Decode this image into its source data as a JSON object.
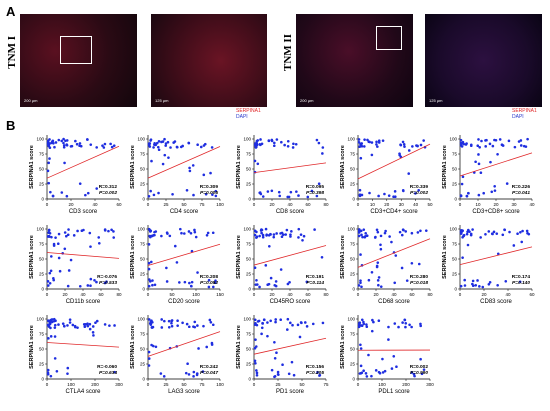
{
  "panel_a_label": "A",
  "panel_b_label": "B",
  "tnm1_label": "TNM I",
  "tnm2_label": "TNM II",
  "stain_red": "SERPINA1",
  "stain_blue": "DAPI",
  "scale_200": "200 μm",
  "scale_125": "125 μm",
  "plots": [
    {
      "xlabel": "CD3 score",
      "ylabel": "SERPINA1 score",
      "r": "R=0.312",
      "p": "P=0.002",
      "xticks": [
        0,
        20,
        40,
        60
      ],
      "xmax": 60
    },
    {
      "xlabel": "CD4 score",
      "ylabel": "SERPINA1 score",
      "r": "R=0.309",
      "p": "P=0.005",
      "xticks": [
        0,
        25,
        50,
        75,
        100
      ],
      "xmax": 100
    },
    {
      "xlabel": "CD8 score",
      "ylabel": "SERPINA1 score",
      "r": "R=0.095",
      "p": "P=0.398",
      "xticks": [
        0,
        20,
        40,
        60,
        80
      ],
      "xmax": 80
    },
    {
      "xlabel": "CD3+CD4+ score",
      "ylabel": "SERPINA1 score",
      "r": "R=0.339",
      "p": "P=0.002",
      "xticks": [
        0,
        10,
        20,
        30,
        40,
        50
      ],
      "xmax": 50
    },
    {
      "xlabel": "CD3+CD8+ score",
      "ylabel": "SERPINA1 score",
      "r": "R=0.226",
      "p": "P=0.041",
      "xticks": [
        0,
        10,
        20,
        30,
        40
      ],
      "xmax": 40
    },
    {
      "xlabel": "CD11b score",
      "ylabel": "SERPINA1 score",
      "r": "R=-0.076",
      "p": "P=0.533",
      "xticks": [
        0,
        20,
        40,
        60,
        80
      ],
      "xmax": 80
    },
    {
      "xlabel": "CD20 score",
      "ylabel": "SERPINA1 score",
      "r": "R=0.208",
      "p": "P=0.082",
      "xticks": [
        0,
        50,
        100,
        150
      ],
      "xmax": 150
    },
    {
      "xlabel": "CD45RO score",
      "ylabel": "SERPINA1 score",
      "r": "R=0.191",
      "p": "P=0.114",
      "xticks": [
        0,
        20,
        40,
        60,
        80
      ],
      "xmax": 80
    },
    {
      "xlabel": "CD68 score",
      "ylabel": "SERPINA1 score",
      "r": "R=0.280",
      "p": "P=0.018",
      "xticks": [
        0,
        20,
        40,
        60,
        80
      ],
      "xmax": 80
    },
    {
      "xlabel": "CD83 score",
      "ylabel": "SERPINA1 score",
      "r": "R=0.174",
      "p": "P=0.140",
      "xticks": [
        0,
        20,
        40,
        60
      ],
      "xmax": 60
    },
    {
      "xlabel": "CTLA4 score",
      "ylabel": "SERPINA1 score",
      "r": "R=-0.060",
      "p": "P=0.634",
      "xticks": [
        0,
        100,
        200,
        300
      ],
      "xmax": 300
    },
    {
      "xlabel": "LAG3 score",
      "ylabel": "SERPINA1 score",
      "r": "R=0.242",
      "p": "P=0.047",
      "xticks": [
        0,
        25,
        50,
        75,
        100
      ],
      "xmax": 100
    },
    {
      "xlabel": "PD1 score",
      "ylabel": "SERPINA1 score",
      "r": "R=0.156",
      "p": "P=0.205",
      "xticks": [
        0,
        25,
        50,
        75
      ],
      "xmax": 75
    },
    {
      "xlabel": "PDL1 score",
      "ylabel": "SERPINA1 score",
      "r": "R=0.002",
      "p": "P=0.990",
      "xticks": [
        0,
        100,
        200,
        300
      ],
      "xmax": 300
    }
  ],
  "yticks": [
    0,
    25,
    50,
    75,
    100
  ]
}
